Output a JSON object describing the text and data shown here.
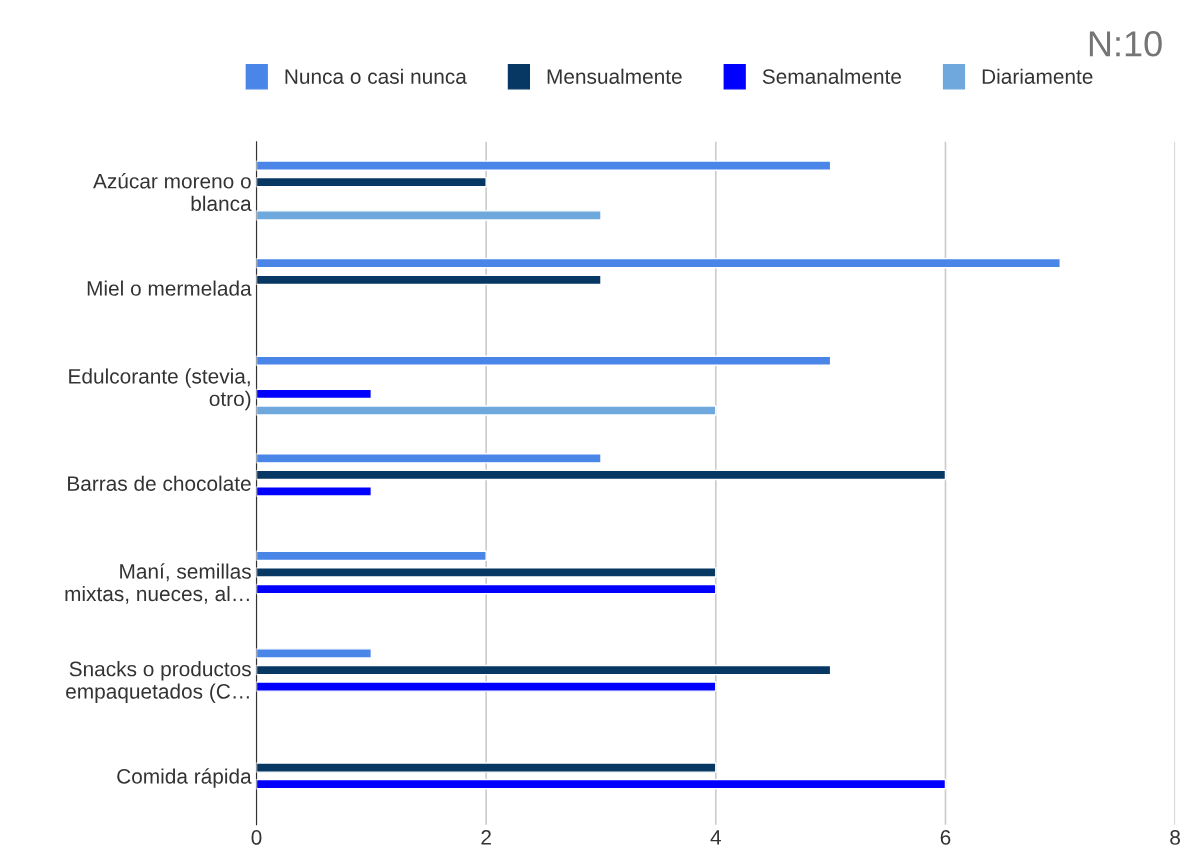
{
  "chart_data": {
    "type": "bar",
    "orientation": "horizontal",
    "title": "N:10",
    "categories": [
      "Azúcar moreno o\nblanca",
      "Miel o mermelada",
      "Edulcorante (stevia,\notro)",
      "Barras de chocolate",
      "Maní, semillas\nmixtas, nueces, al…",
      "Snacks o productos\nempaquetados (C…",
      "Comida rápida"
    ],
    "series": [
      {
        "name": "Nunca o casi nunca",
        "color": "#4a86e8",
        "values": [
          5,
          7,
          5,
          3,
          2,
          1,
          null
        ]
      },
      {
        "name": "Mensualmente",
        "color": "#073763",
        "values": [
          2,
          3,
          null,
          6,
          4,
          5,
          4
        ]
      },
      {
        "name": "Semanalmente",
        "color": "#0000ff",
        "values": [
          null,
          null,
          1,
          1,
          4,
          4,
          6
        ]
      },
      {
        "name": "Diariamente",
        "color": "#6fa8dc",
        "values": [
          3,
          null,
          4,
          null,
          null,
          null,
          null
        ]
      }
    ],
    "xlim": [
      0,
      8
    ],
    "xticks": [
      0,
      2,
      4,
      6,
      8
    ],
    "grid": "x",
    "legend": "top"
  }
}
